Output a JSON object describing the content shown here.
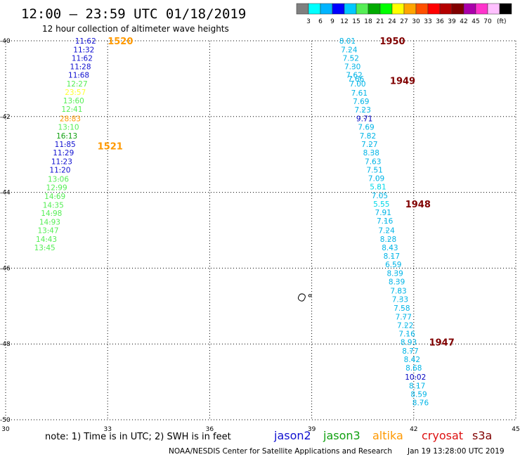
{
  "header": {
    "title": "12:00 – 23:59 UTC 01/18/2019",
    "subtitle": "12 hour collection of altimeter wave heights"
  },
  "colorbar": {
    "colors": [
      "#7f7f7f",
      "#00ffff",
      "#00b4ff",
      "#0000ff",
      "#00c8ff",
      "#55ee55",
      "#00aa00",
      "#00ff00",
      "#ffff00",
      "#ffa500",
      "#ff5000",
      "#ff0000",
      "#b40000",
      "#800000",
      "#aa00aa",
      "#ff33cc",
      "#ffc0ff",
      "#000000"
    ],
    "labels": [
      "3",
      "6",
      "9",
      "12",
      "15",
      "18",
      "21",
      "24",
      "27",
      "30",
      "33",
      "36",
      "39",
      "42",
      "45",
      "70"
    ],
    "unit": "(ft)"
  },
  "axes": {
    "x_ticks": [
      30,
      33,
      36,
      39,
      42,
      45
    ],
    "y_ticks": [
      -40,
      -42,
      -44,
      -46,
      -48,
      -50
    ],
    "xlim": [
      30,
      45
    ],
    "ylim": [
      -50,
      -40
    ]
  },
  "footer": {
    "note": "note:  1) Time is in UTC;  2) SWH is in feet",
    "missions": [
      {
        "name": "jason2",
        "color": "#1010d0"
      },
      {
        "name": "jason3",
        "color": "#10a010"
      },
      {
        "name": "altika",
        "color": "#ff9900"
      },
      {
        "name": "cryosat",
        "color": "#dd1010"
      },
      {
        "name": "s3a",
        "color": "#800000"
      }
    ],
    "credit": "NOAA/NESDIS Center for Satellite Applications and Research",
    "timestamp": "Jan 19 13:28:00 UTC 2019"
  },
  "island": {
    "lon": 38.7,
    "lat": -46.8
  },
  "chart_data": {
    "type": "scatter",
    "title": "12:00 – 23:59 UTC 01/18/2019",
    "tracks": [
      {
        "color_by_value": true,
        "points": [
          {
            "lon": 32.35,
            "lat": -40.0,
            "label": "11.62",
            "color": "#1010d0"
          },
          {
            "lon": 32.3,
            "lat": -40.23,
            "label": "11.32",
            "color": "#1010d0"
          },
          {
            "lon": 32.25,
            "lat": -40.45,
            "label": "11.62",
            "color": "#1010d0"
          },
          {
            "lon": 32.2,
            "lat": -40.68,
            "label": "11.28",
            "color": "#1010d0"
          },
          {
            "lon": 32.15,
            "lat": -40.9,
            "label": "11.68",
            "color": "#1010d0"
          },
          {
            "lon": 32.1,
            "lat": -41.13,
            "label": "12.27",
            "color": "#55ee55"
          },
          {
            "lon": 32.05,
            "lat": -41.35,
            "label": "23.57",
            "color": "#ffff33"
          },
          {
            "lon": 32.0,
            "lat": -41.58,
            "label": "13.60",
            "color": "#55ee55"
          },
          {
            "lon": 31.95,
            "lat": -41.8,
            "label": "12.41",
            "color": "#55ee55"
          },
          {
            "lon": 31.9,
            "lat": -42.05,
            "label": "28.83",
            "color": "#ff9900"
          },
          {
            "lon": 31.85,
            "lat": -42.27,
            "label": "13.10",
            "color": "#55ee55"
          },
          {
            "lon": 31.8,
            "lat": -42.5,
            "label": "16.13",
            "color": "#10a010"
          },
          {
            "lon": 31.75,
            "lat": -42.73,
            "label": "11.85",
            "color": "#1010d0"
          },
          {
            "lon": 31.7,
            "lat": -42.95,
            "label": "11.29",
            "color": "#1010d0"
          },
          {
            "lon": 31.65,
            "lat": -43.18,
            "label": "11.23",
            "color": "#1010d0"
          },
          {
            "lon": 31.6,
            "lat": -43.4,
            "label": "11.20",
            "color": "#1010d0"
          },
          {
            "lon": 31.55,
            "lat": -43.65,
            "label": "13.06",
            "color": "#55ee55"
          },
          {
            "lon": 31.5,
            "lat": -43.87,
            "label": "12.99",
            "color": "#55ee55"
          },
          {
            "lon": 31.45,
            "lat": -44.1,
            "label": "14.69",
            "color": "#55ee55"
          },
          {
            "lon": 31.4,
            "lat": -44.33,
            "label": "14.35",
            "color": "#55ee55"
          },
          {
            "lon": 31.35,
            "lat": -44.55,
            "label": "14.98",
            "color": "#55ee55"
          },
          {
            "lon": 31.3,
            "lat": -44.78,
            "label": "14.93",
            "color": "#55ee55"
          },
          {
            "lon": 31.25,
            "lat": -45.0,
            "label": "13.47",
            "color": "#55ee55"
          },
          {
            "lon": 31.2,
            "lat": -45.23,
            "label": "14.43",
            "color": "#55ee55"
          },
          {
            "lon": 31.15,
            "lat": -45.45,
            "label": "13.45",
            "color": "#55ee55"
          }
        ]
      },
      {
        "color_by_value": true,
        "points": [
          {
            "lon": 40.05,
            "lat": -40.0,
            "label": "8.01",
            "color": "#00b4e6"
          },
          {
            "lon": 40.1,
            "lat": -40.23,
            "label": "7.24",
            "color": "#00b4e6"
          },
          {
            "lon": 40.15,
            "lat": -40.45,
            "label": "7.52",
            "color": "#00b4e6"
          },
          {
            "lon": 40.2,
            "lat": -40.68,
            "label": "7.30",
            "color": "#00b4e6"
          },
          {
            "lon": 40.25,
            "lat": -40.9,
            "label": "7.62",
            "color": "#00b4e6"
          },
          {
            "lon": 40.3,
            "lat": -41.0,
            "label": "7.66",
            "color": "#00b4e6"
          },
          {
            "lon": 40.35,
            "lat": -41.13,
            "label": "7.00",
            "color": "#00b4e6"
          },
          {
            "lon": 40.4,
            "lat": -41.37,
            "label": "7.61",
            "color": "#00b4e6"
          },
          {
            "lon": 40.45,
            "lat": -41.6,
            "label": "7.69",
            "color": "#00b4e6"
          },
          {
            "lon": 40.5,
            "lat": -41.82,
            "label": "7.23",
            "color": "#00b4e6"
          },
          {
            "lon": 40.55,
            "lat": -42.05,
            "label": "9.71",
            "color": "#0000c0"
          },
          {
            "lon": 40.6,
            "lat": -42.27,
            "label": "7.69",
            "color": "#00b4e6"
          },
          {
            "lon": 40.65,
            "lat": -42.5,
            "label": "7.82",
            "color": "#00b4e6"
          },
          {
            "lon": 40.7,
            "lat": -42.73,
            "label": "7.27",
            "color": "#00b4e6"
          },
          {
            "lon": 40.75,
            "lat": -42.95,
            "label": "8.38",
            "color": "#00b4e6"
          },
          {
            "lon": 40.8,
            "lat": -43.18,
            "label": "7.63",
            "color": "#00b4e6"
          },
          {
            "lon": 40.85,
            "lat": -43.4,
            "label": "7.51",
            "color": "#00b4e6"
          },
          {
            "lon": 40.9,
            "lat": -43.63,
            "label": "7.09",
            "color": "#00b4e6"
          },
          {
            "lon": 40.95,
            "lat": -43.85,
            "label": "5.81",
            "color": "#00d8e8"
          },
          {
            "lon": 41.0,
            "lat": -44.08,
            "label": "7.05",
            "color": "#00b4e6"
          },
          {
            "lon": 41.05,
            "lat": -44.3,
            "label": "5.55",
            "color": "#00d8e8"
          },
          {
            "lon": 41.1,
            "lat": -44.53,
            "label": "7.91",
            "color": "#00b4e6"
          },
          {
            "lon": 41.15,
            "lat": -44.75,
            "label": "7.16",
            "color": "#00b4e6"
          },
          {
            "lon": 41.2,
            "lat": -45.0,
            "label": "7.24",
            "color": "#00b4e6"
          },
          {
            "lon": 41.25,
            "lat": -45.23,
            "label": "8.28",
            "color": "#00b4e6"
          },
          {
            "lon": 41.3,
            "lat": -45.45,
            "label": "8.43",
            "color": "#00b4e6"
          },
          {
            "lon": 41.35,
            "lat": -45.68,
            "label": "8.17",
            "color": "#00b4e6"
          },
          {
            "lon": 41.4,
            "lat": -45.9,
            "label": "6.59",
            "color": "#00b4e6"
          },
          {
            "lon": 41.45,
            "lat": -46.13,
            "label": "8.39",
            "color": "#00b4e6"
          },
          {
            "lon": 41.5,
            "lat": -46.35,
            "label": "8.39",
            "color": "#00b4e6"
          },
          {
            "lon": 41.55,
            "lat": -46.6,
            "label": "7.83",
            "color": "#00b4e6"
          },
          {
            "lon": 41.6,
            "lat": -46.82,
            "label": "7.33",
            "color": "#00b4e6"
          },
          {
            "lon": 41.65,
            "lat": -47.05,
            "label": "7.58",
            "color": "#00b4e6"
          },
          {
            "lon": 41.7,
            "lat": -47.28,
            "label": "7.77",
            "color": "#00b4e6"
          },
          {
            "lon": 41.75,
            "lat": -47.5,
            "label": "7.22",
            "color": "#00b4e6"
          },
          {
            "lon": 41.8,
            "lat": -47.73,
            "label": "7.16",
            "color": "#00b4e6"
          },
          {
            "lon": 41.85,
            "lat": -47.95,
            "label": "8.93",
            "color": "#00b4e6"
          },
          {
            "lon": 41.9,
            "lat": -48.18,
            "label": "8.77",
            "color": "#00b4e6"
          },
          {
            "lon": 41.95,
            "lat": -48.4,
            "label": "8.42",
            "color": "#00b4e6"
          },
          {
            "lon": 42.0,
            "lat": -48.63,
            "label": "8.68",
            "color": "#00b4e6"
          },
          {
            "lon": 42.05,
            "lat": -48.87,
            "label": "10.02",
            "color": "#0000c0"
          },
          {
            "lon": 42.1,
            "lat": -49.1,
            "label": "8.17",
            "color": "#00b4e6"
          },
          {
            "lon": 42.15,
            "lat": -49.32,
            "label": "8.59",
            "color": "#00b4e6"
          },
          {
            "lon": 42.2,
            "lat": -49.55,
            "label": "8.76",
            "color": "#00b4e6"
          }
        ]
      }
    ],
    "time_labels": [
      {
        "lon": 33.0,
        "lat": -40.0,
        "text": "1520",
        "color": "#ff9900"
      },
      {
        "lon": 32.7,
        "lat": -42.77,
        "text": "1521",
        "color": "#ff9900"
      },
      {
        "lon": 41.0,
        "lat": -40.0,
        "text": "1950",
        "color": "#800000"
      },
      {
        "lon": 41.3,
        "lat": -41.05,
        "text": "1949",
        "color": "#800000"
      },
      {
        "lon": 41.75,
        "lat": -44.3,
        "text": "1948",
        "color": "#800000"
      },
      {
        "lon": 42.45,
        "lat": -47.95,
        "text": "1947",
        "color": "#800000"
      }
    ]
  }
}
